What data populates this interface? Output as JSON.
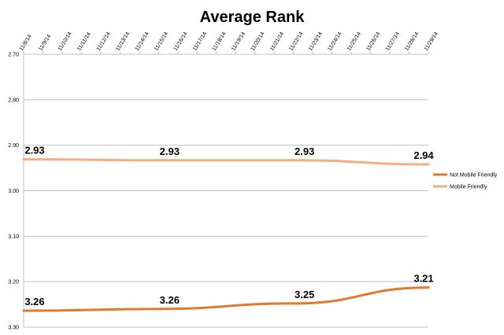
{
  "chart_data": {
    "type": "line",
    "title": "Average Rank",
    "xlabel": "",
    "ylabel": "",
    "y_reversed": true,
    "ylim": [
      2.7,
      3.3
    ],
    "yticks": [
      "2.70",
      "2.80",
      "2.90",
      "3.00",
      "3.10",
      "3.20",
      "3.30"
    ],
    "grid": true,
    "legend_position": "right",
    "categories": [
      "11/8/14",
      "11/9/14",
      "11/10/14",
      "11/11/14",
      "11/12/14",
      "11/13/14",
      "11/14/14",
      "11/15/14",
      "11/16/14",
      "11/17/14",
      "11/18/14",
      "11/19/14",
      "11/20/14",
      "11/21/14",
      "11/22/14",
      "11/23/14",
      "11/24/14",
      "11/25/14",
      "11/26/14",
      "11/27/14",
      "11/28/14",
      "11/29/14"
    ],
    "series": [
      {
        "name": "Not Mobile Friendly",
        "color": "#e07a2e",
        "points": [
          {
            "x": "11/8/14",
            "y": 3.264
          },
          {
            "x": "11/15/14",
            "y": 3.26
          },
          {
            "x": "11/22/14",
            "y": 3.248
          },
          {
            "x": "11/29/14",
            "y": 3.213
          }
        ],
        "labels": [
          "3.26",
          "3.26",
          "3.25",
          "3.21"
        ]
      },
      {
        "name": "Mobile Friendly",
        "color": "#f4ad82",
        "points": [
          {
            "x": "11/8/14",
            "y": 2.931
          },
          {
            "x": "11/15/14",
            "y": 2.933
          },
          {
            "x": "11/22/14",
            "y": 2.933
          },
          {
            "x": "11/29/14",
            "y": 2.942
          }
        ],
        "labels": [
          "2.93",
          "2.93",
          "2.93",
          "2.94"
        ]
      }
    ]
  }
}
